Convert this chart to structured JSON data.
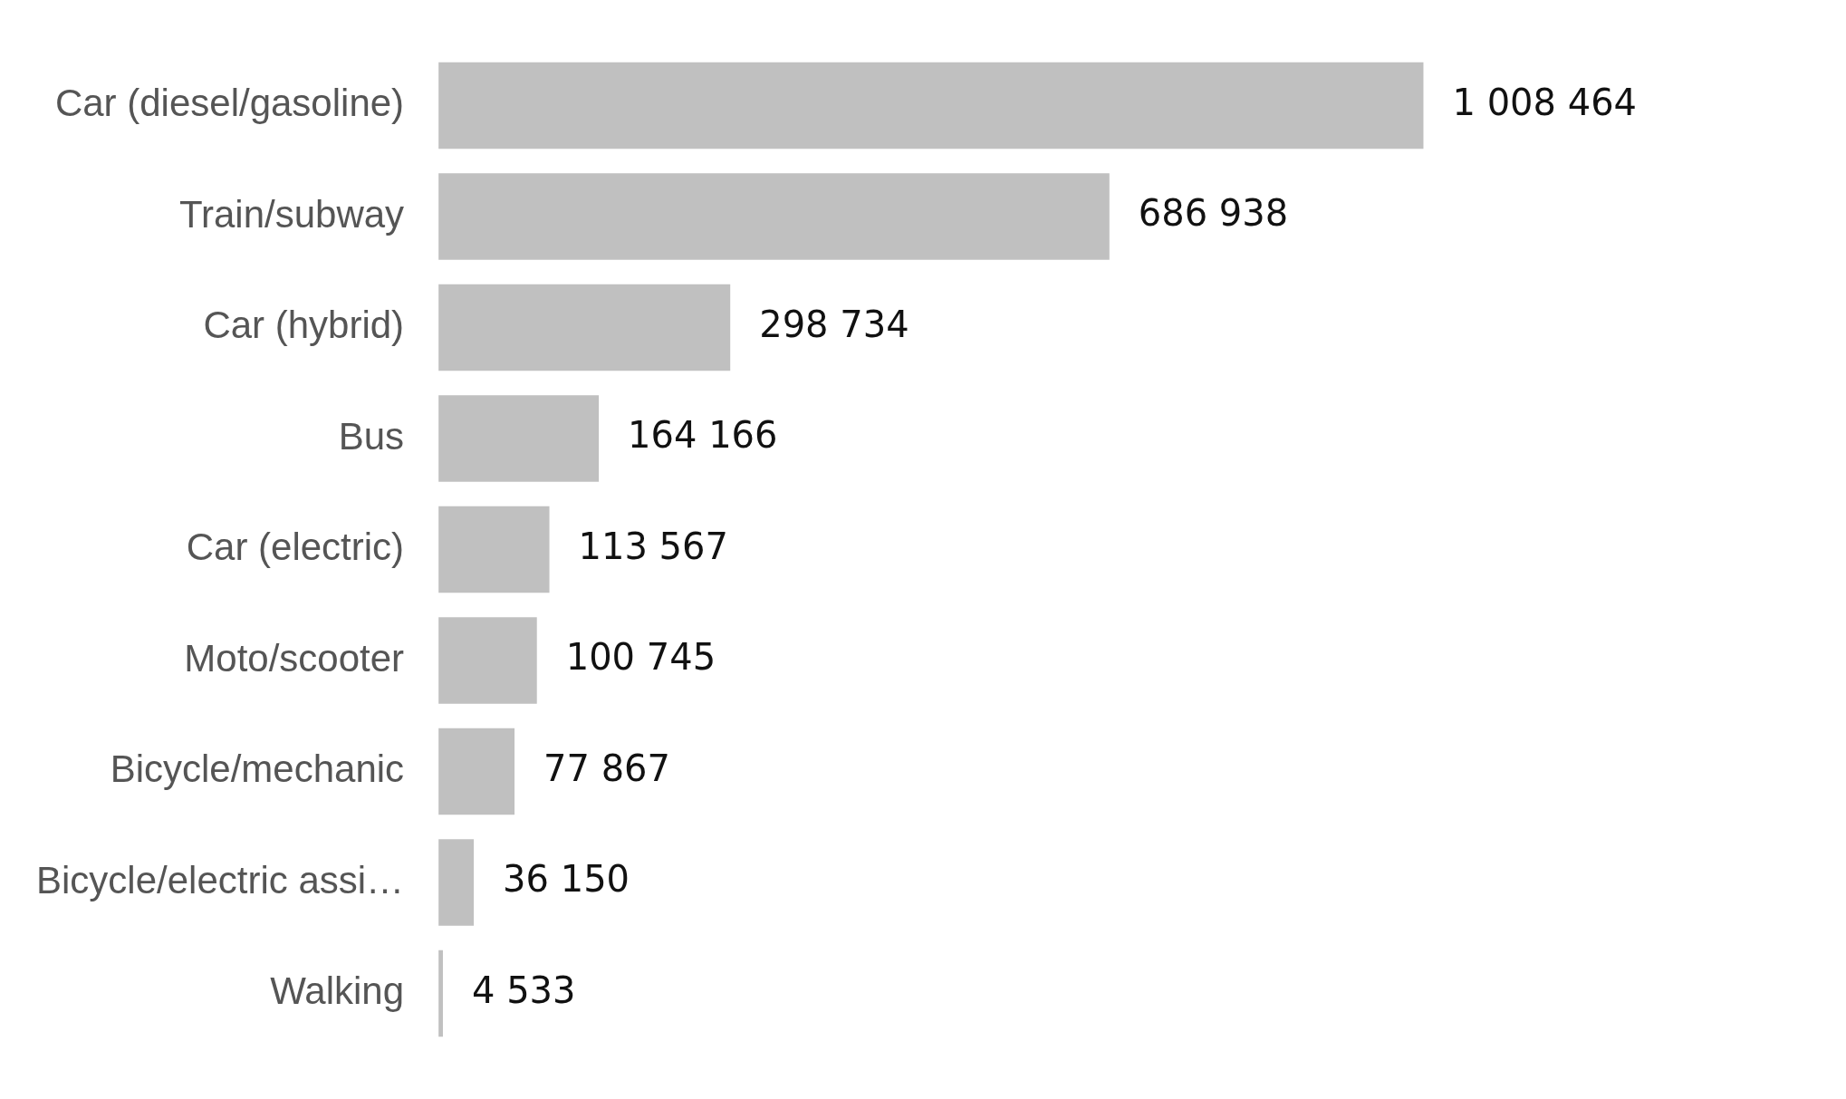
{
  "chart_data": {
    "type": "bar",
    "orientation": "horizontal",
    "categories": [
      "Car (diesel/gasoline)",
      "Train/subway",
      "Car (hybrid)",
      "Bus",
      "Car (electric)",
      "Moto/scooter",
      "Bicycle/mechanic",
      "Bicycle/electric assi…",
      "Walking"
    ],
    "values": [
      1008464,
      686938,
      298734,
      164166,
      113567,
      100745,
      77867,
      36150,
      4533
    ],
    "value_labels": [
      "1 008 464",
      "686 938",
      "298 734",
      "164 166",
      "113 567",
      "100 745",
      "77 867",
      "36 150",
      "4 533"
    ],
    "color": "#c0c0c0"
  }
}
